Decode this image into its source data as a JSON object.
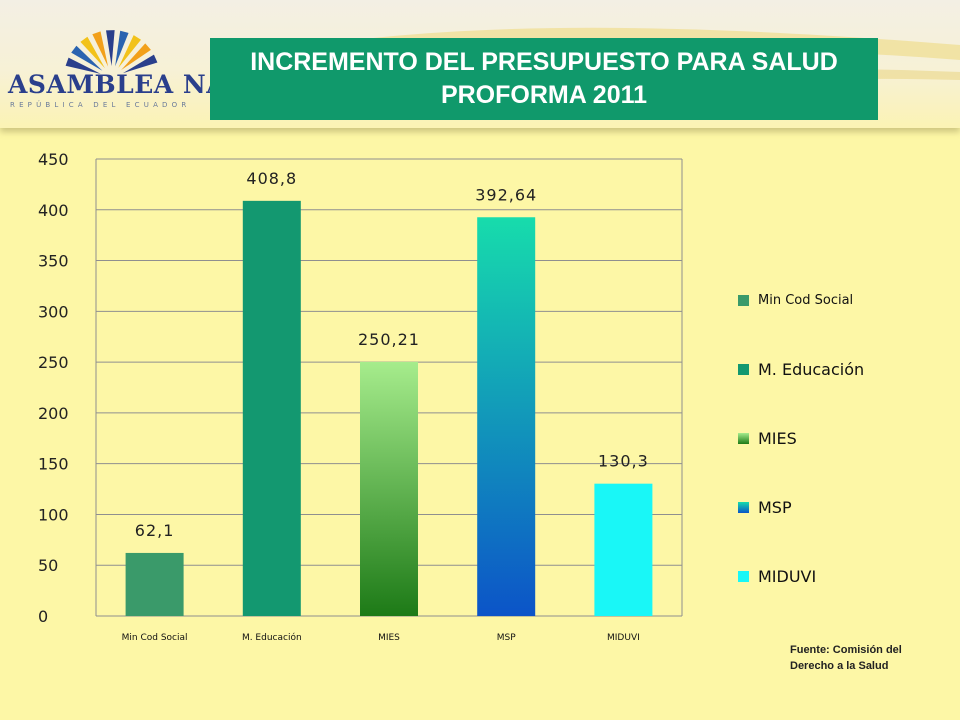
{
  "header": {
    "logo_name": "Asamblea Nacional",
    "logo_text": "ASAMBLEA NACIONAL",
    "logo_subtext": "REPÚBLICA DEL ECUADOR",
    "title": "INCREMENTO DEL PRESUPUESTO PARA SALUD PROFORMA 2011",
    "title_bg": "#10996b",
    "icon": "sun-rays-logo-icon"
  },
  "colors": {
    "background": "#fdf7a6",
    "min_cod_social": "#3a9a6a",
    "m_educacion": "#139870",
    "mies_top": "#a6ec8c",
    "mies_bottom": "#1d7a17",
    "msp_top": "#17dcac",
    "msp_bottom": "#0c54c8",
    "miduvi": "#19f7f7"
  },
  "chart_data": {
    "type": "bar",
    "categories": [
      "Min Cod Social",
      "M. Educación",
      "MIES",
      "MSP",
      "MIDUVI"
    ],
    "values": [
      62.1,
      408.8,
      250.21,
      392.64,
      130.3
    ],
    "data_labels": [
      "62,1",
      "408,8",
      "250,21",
      "392,64",
      "130,3"
    ],
    "series": [
      {
        "name": "Min Cod Social",
        "value": 62.1
      },
      {
        "name": "M. Educación",
        "value": 408.8
      },
      {
        "name": "MIES",
        "value": 250.21
      },
      {
        "name": "MSP",
        "value": 392.64
      },
      {
        "name": "MIDUVI",
        "value": 130.3
      }
    ],
    "yticks": [
      "0",
      "50",
      "100",
      "150",
      "200",
      "250",
      "300",
      "350",
      "400",
      "450"
    ],
    "ylim": [
      0,
      450
    ],
    "grid": true,
    "legend_position": "right",
    "title": "",
    "xlabel": "",
    "ylabel": ""
  },
  "legend": {
    "items": [
      "Min Cod Social",
      "M. Educación",
      "MIES",
      "MSP",
      "MIDUVI"
    ]
  },
  "source": {
    "line1": "Fuente: Comisión del",
    "line2": "Derecho a la Salud"
  }
}
